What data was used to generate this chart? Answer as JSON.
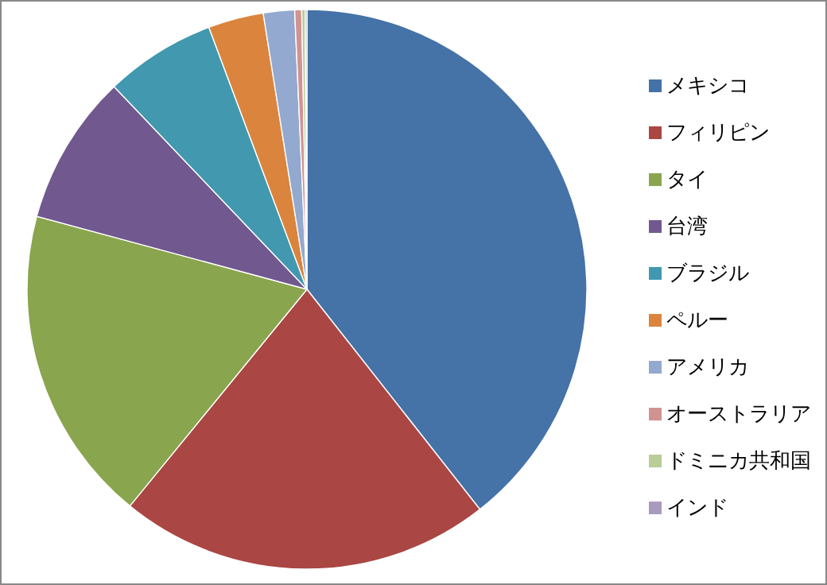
{
  "chart_data": {
    "type": "pie",
    "legend": "right",
    "categories": [
      "メキシコ",
      "フィリピン",
      "タイ",
      "台湾",
      "ブラジル",
      "ペルー",
      "アメリカ",
      "オーストラリア",
      "ドミニカ共和国",
      "インド"
    ],
    "values": [
      39.4,
      21.5,
      18.3,
      8.7,
      6.4,
      3.2,
      1.8,
      0.4,
      0.2,
      0.1
    ],
    "colors": [
      "#4572a7",
      "#aa4643",
      "#89a54e",
      "#71588f",
      "#4198af",
      "#db843d",
      "#93a9cf",
      "#d19392",
      "#b9cd96",
      "#a99bbd"
    ]
  }
}
